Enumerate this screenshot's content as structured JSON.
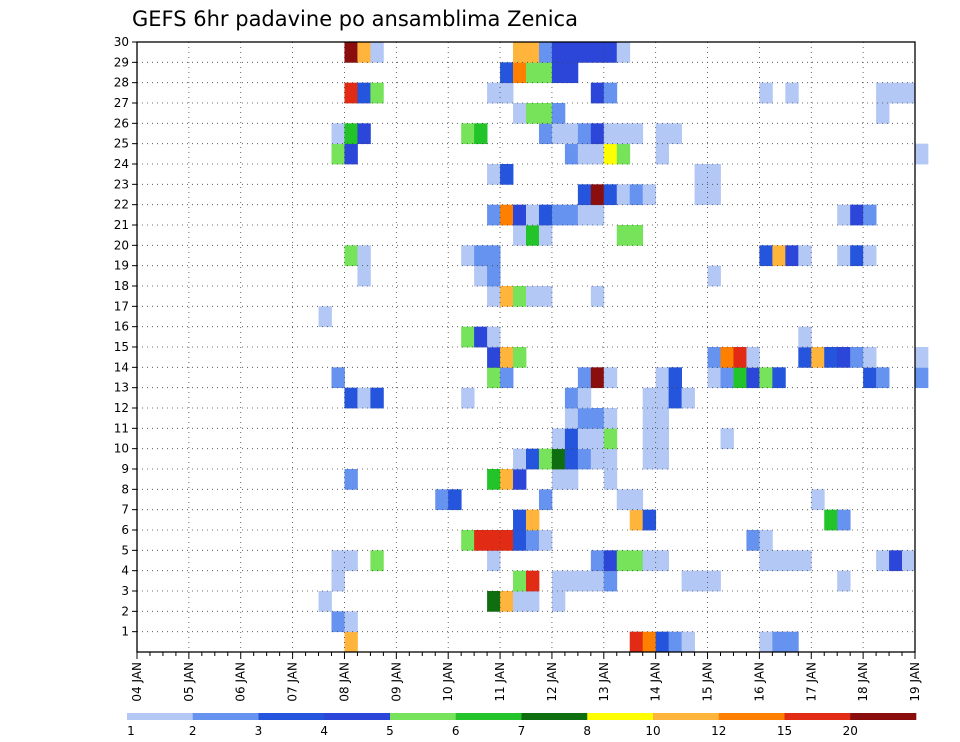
{
  "chart_data": {
    "type": "heatmap",
    "title": "GEFS 6hr padavine po ansamblima Zenica",
    "x_ticks": [
      "04 JAN",
      "05 JAN",
      "06 JAN",
      "07 JAN",
      "08 JAN",
      "09 JAN",
      "10 JAN",
      "11 JAN",
      "12 JAN",
      "13 JAN",
      "14 JAN",
      "15 JAN",
      "16 JAN",
      "17 JAN",
      "18 JAN",
      "19 JAN"
    ],
    "y_ticks": [
      "1",
      "2",
      "3",
      "4",
      "5",
      "6",
      "7",
      "8",
      "9",
      "10",
      "11",
      "12",
      "13",
      "14",
      "15",
      "16",
      "17",
      "18",
      "19",
      "20",
      "21",
      "22",
      "23",
      "24",
      "25",
      "26",
      "27",
      "28",
      "29",
      "30"
    ],
    "x_range": [
      "04 JAN",
      "19 JAN"
    ],
    "y_range": [
      0,
      30
    ],
    "steps_per_day": 4,
    "grid": "dotted",
    "colorbar": {
      "placement": "bottom",
      "labels": [
        "1",
        "2",
        "3",
        "4",
        "5",
        "6",
        "7",
        "8",
        "10",
        "12",
        "15",
        "20"
      ],
      "colors": [
        "#b4c8f5",
        "#6693f0",
        "#2455dc",
        "#2b46d8",
        "#76e35a",
        "#22c42a",
        "#0f6e10",
        "#ffff00",
        "#ffb43c",
        "#ff8000",
        "#e22b14",
        "#8b0e0e"
      ]
    },
    "cells": [
      {
        "t": 16,
        "m": 1,
        "v": 9
      },
      {
        "t": 38,
        "m": 1,
        "v": 11
      },
      {
        "t": 39,
        "m": 1,
        "v": 10
      },
      {
        "t": 40,
        "m": 1,
        "v": 3
      },
      {
        "t": 41,
        "m": 1,
        "v": 2
      },
      {
        "t": 42,
        "m": 1,
        "v": 1
      },
      {
        "t": 48,
        "m": 1,
        "v": 1
      },
      {
        "t": 49,
        "m": 1,
        "v": 2
      },
      {
        "t": 50,
        "m": 1,
        "v": 2
      },
      {
        "t": 15,
        "m": 2,
        "v": 2
      },
      {
        "t": 16,
        "m": 2,
        "v": 1
      },
      {
        "t": 14,
        "m": 3,
        "v": 1
      },
      {
        "t": 27,
        "m": 3,
        "v": 7
      },
      {
        "t": 28,
        "m": 3,
        "v": 9
      },
      {
        "t": 29,
        "m": 3,
        "v": 1
      },
      {
        "t": 30,
        "m": 3,
        "v": 1
      },
      {
        "t": 32,
        "m": 3,
        "v": 1
      },
      {
        "t": 15,
        "m": 4,
        "v": 1
      },
      {
        "t": 29,
        "m": 4,
        "v": 5
      },
      {
        "t": 30,
        "m": 4,
        "v": 11
      },
      {
        "t": 32,
        "m": 4,
        "v": 1
      },
      {
        "t": 33,
        "m": 4,
        "v": 1
      },
      {
        "t": 34,
        "m": 4,
        "v": 1
      },
      {
        "t": 35,
        "m": 4,
        "v": 1
      },
      {
        "t": 36,
        "m": 4,
        "v": 2
      },
      {
        "t": 42,
        "m": 4,
        "v": 1
      },
      {
        "t": 43,
        "m": 4,
        "v": 1
      },
      {
        "t": 44,
        "m": 4,
        "v": 1
      },
      {
        "t": 54,
        "m": 4,
        "v": 1
      },
      {
        "t": 15,
        "m": 5,
        "v": 1
      },
      {
        "t": 16,
        "m": 5,
        "v": 1
      },
      {
        "t": 18,
        "m": 5,
        "v": 5
      },
      {
        "t": 27,
        "m": 5,
        "v": 1
      },
      {
        "t": 35,
        "m": 5,
        "v": 2
      },
      {
        "t": 36,
        "m": 5,
        "v": 4
      },
      {
        "t": 37,
        "m": 5,
        "v": 5
      },
      {
        "t": 38,
        "m": 5,
        "v": 5
      },
      {
        "t": 39,
        "m": 5,
        "v": 1
      },
      {
        "t": 40,
        "m": 5,
        "v": 1
      },
      {
        "t": 48,
        "m": 5,
        "v": 1
      },
      {
        "t": 49,
        "m": 5,
        "v": 1
      },
      {
        "t": 50,
        "m": 5,
        "v": 1
      },
      {
        "t": 51,
        "m": 5,
        "v": 1
      },
      {
        "t": 57,
        "m": 5,
        "v": 1
      },
      {
        "t": 58,
        "m": 5,
        "v": 4
      },
      {
        "t": 59,
        "m": 5,
        "v": 1
      },
      {
        "t": 25,
        "m": 6,
        "v": 5
      },
      {
        "t": 26,
        "m": 6,
        "v": 11
      },
      {
        "t": 27,
        "m": 6,
        "v": 11
      },
      {
        "t": 28,
        "m": 6,
        "v": 11
      },
      {
        "t": 29,
        "m": 6,
        "v": 3
      },
      {
        "t": 30,
        "m": 6,
        "v": 2
      },
      {
        "t": 31,
        "m": 6,
        "v": 1
      },
      {
        "t": 47,
        "m": 6,
        "v": 2
      },
      {
        "t": 48,
        "m": 6,
        "v": 1
      },
      {
        "t": 29,
        "m": 7,
        "v": 3
      },
      {
        "t": 30,
        "m": 7,
        "v": 9
      },
      {
        "t": 38,
        "m": 7,
        "v": 9
      },
      {
        "t": 39,
        "m": 7,
        "v": 3
      },
      {
        "t": 53,
        "m": 7,
        "v": 6
      },
      {
        "t": 54,
        "m": 7,
        "v": 2
      },
      {
        "t": 23,
        "m": 8,
        "v": 2
      },
      {
        "t": 24,
        "m": 8,
        "v": 3
      },
      {
        "t": 31,
        "m": 8,
        "v": 2
      },
      {
        "t": 37,
        "m": 8,
        "v": 1
      },
      {
        "t": 38,
        "m": 8,
        "v": 1
      },
      {
        "t": 52,
        "m": 8,
        "v": 1
      },
      {
        "t": 16,
        "m": 9,
        "v": 2
      },
      {
        "t": 27,
        "m": 9,
        "v": 6
      },
      {
        "t": 28,
        "m": 9,
        "v": 9
      },
      {
        "t": 29,
        "m": 9,
        "v": 4
      },
      {
        "t": 32,
        "m": 9,
        "v": 1
      },
      {
        "t": 33,
        "m": 9,
        "v": 1
      },
      {
        "t": 36,
        "m": 9,
        "v": 1
      },
      {
        "t": 29,
        "m": 10,
        "v": 1
      },
      {
        "t": 30,
        "m": 10,
        "v": 3
      },
      {
        "t": 31,
        "m": 10,
        "v": 5
      },
      {
        "t": 32,
        "m": 10,
        "v": 7
      },
      {
        "t": 33,
        "m": 10,
        "v": 3
      },
      {
        "t": 34,
        "m": 10,
        "v": 2
      },
      {
        "t": 35,
        "m": 10,
        "v": 1
      },
      {
        "t": 36,
        "m": 10,
        "v": 1
      },
      {
        "t": 39,
        "m": 10,
        "v": 1
      },
      {
        "t": 40,
        "m": 10,
        "v": 1
      },
      {
        "t": 32,
        "m": 11,
        "v": 1
      },
      {
        "t": 33,
        "m": 11,
        "v": 3
      },
      {
        "t": 34,
        "m": 11,
        "v": 1
      },
      {
        "t": 35,
        "m": 11,
        "v": 1
      },
      {
        "t": 36,
        "m": 11,
        "v": 5
      },
      {
        "t": 39,
        "m": 11,
        "v": 1
      },
      {
        "t": 40,
        "m": 11,
        "v": 1
      },
      {
        "t": 45,
        "m": 11,
        "v": 1
      },
      {
        "t": 33,
        "m": 12,
        "v": 1
      },
      {
        "t": 34,
        "m": 12,
        "v": 2
      },
      {
        "t": 35,
        "m": 12,
        "v": 2
      },
      {
        "t": 36,
        "m": 12,
        "v": 1
      },
      {
        "t": 39,
        "m": 12,
        "v": 1
      },
      {
        "t": 40,
        "m": 12,
        "v": 1
      },
      {
        "t": 16,
        "m": 13,
        "v": 3
      },
      {
        "t": 17,
        "m": 13,
        "v": 1
      },
      {
        "t": 18,
        "m": 13,
        "v": 3
      },
      {
        "t": 25,
        "m": 13,
        "v": 1
      },
      {
        "t": 33,
        "m": 13,
        "v": 2
      },
      {
        "t": 34,
        "m": 13,
        "v": 1
      },
      {
        "t": 39,
        "m": 13,
        "v": 1
      },
      {
        "t": 40,
        "m": 13,
        "v": 1
      },
      {
        "t": 41,
        "m": 13,
        "v": 3
      },
      {
        "t": 42,
        "m": 13,
        "v": 1
      },
      {
        "t": 15,
        "m": 14,
        "v": 2
      },
      {
        "t": 27,
        "m": 14,
        "v": 5
      },
      {
        "t": 28,
        "m": 14,
        "v": 2
      },
      {
        "t": 34,
        "m": 14,
        "v": 2
      },
      {
        "t": 35,
        "m": 14,
        "v": 12
      },
      {
        "t": 36,
        "m": 14,
        "v": 1
      },
      {
        "t": 40,
        "m": 14,
        "v": 1
      },
      {
        "t": 41,
        "m": 14,
        "v": 3
      },
      {
        "t": 44,
        "m": 14,
        "v": 1
      },
      {
        "t": 45,
        "m": 14,
        "v": 2
      },
      {
        "t": 46,
        "m": 14,
        "v": 6
      },
      {
        "t": 47,
        "m": 14,
        "v": 4
      },
      {
        "t": 48,
        "m": 14,
        "v": 5
      },
      {
        "t": 49,
        "m": 14,
        "v": 3
      },
      {
        "t": 56,
        "m": 14,
        "v": 3
      },
      {
        "t": 57,
        "m": 14,
        "v": 2
      },
      {
        "t": 60,
        "m": 14,
        "v": 2
      },
      {
        "t": 27,
        "m": 15,
        "v": 4
      },
      {
        "t": 28,
        "m": 15,
        "v": 9
      },
      {
        "t": 29,
        "m": 15,
        "v": 5
      },
      {
        "t": 44,
        "m": 15,
        "v": 2
      },
      {
        "t": 45,
        "m": 15,
        "v": 10
      },
      {
        "t": 46,
        "m": 15,
        "v": 11
      },
      {
        "t": 47,
        "m": 15,
        "v": 1
      },
      {
        "t": 51,
        "m": 15,
        "v": 3
      },
      {
        "t": 52,
        "m": 15,
        "v": 9
      },
      {
        "t": 53,
        "m": 15,
        "v": 3
      },
      {
        "t": 54,
        "m": 15,
        "v": 4
      },
      {
        "t": 55,
        "m": 15,
        "v": 2
      },
      {
        "t": 56,
        "m": 15,
        "v": 1
      },
      {
        "t": 60,
        "m": 15,
        "v": 1
      },
      {
        "t": 25,
        "m": 16,
        "v": 5
      },
      {
        "t": 26,
        "m": 16,
        "v": 4
      },
      {
        "t": 27,
        "m": 16,
        "v": 1
      },
      {
        "t": 51,
        "m": 16,
        "v": 1
      },
      {
        "t": 14,
        "m": 17,
        "v": 1
      },
      {
        "t": 27,
        "m": 18,
        "v": 1
      },
      {
        "t": 28,
        "m": 18,
        "v": 9
      },
      {
        "t": 29,
        "m": 18,
        "v": 5
      },
      {
        "t": 30,
        "m": 18,
        "v": 1
      },
      {
        "t": 31,
        "m": 18,
        "v": 1
      },
      {
        "t": 35,
        "m": 18,
        "v": 1
      },
      {
        "t": 17,
        "m": 19,
        "v": 1
      },
      {
        "t": 26,
        "m": 19,
        "v": 1
      },
      {
        "t": 27,
        "m": 19,
        "v": 2
      },
      {
        "t": 44,
        "m": 19,
        "v": 1
      },
      {
        "t": 16,
        "m": 20,
        "v": 5
      },
      {
        "t": 17,
        "m": 20,
        "v": 1
      },
      {
        "t": 25,
        "m": 20,
        "v": 1
      },
      {
        "t": 26,
        "m": 20,
        "v": 2
      },
      {
        "t": 27,
        "m": 20,
        "v": 2
      },
      {
        "t": 48,
        "m": 20,
        "v": 3
      },
      {
        "t": 49,
        "m": 20,
        "v": 9
      },
      {
        "t": 50,
        "m": 20,
        "v": 4
      },
      {
        "t": 51,
        "m": 20,
        "v": 1
      },
      {
        "t": 54,
        "m": 20,
        "v": 1
      },
      {
        "t": 55,
        "m": 20,
        "v": 3
      },
      {
        "t": 56,
        "m": 20,
        "v": 1
      },
      {
        "t": 29,
        "m": 21,
        "v": 1
      },
      {
        "t": 30,
        "m": 21,
        "v": 6
      },
      {
        "t": 31,
        "m": 21,
        "v": 1
      },
      {
        "t": 37,
        "m": 21,
        "v": 5
      },
      {
        "t": 38,
        "m": 21,
        "v": 5
      },
      {
        "t": 27,
        "m": 22,
        "v": 2
      },
      {
        "t": 28,
        "m": 22,
        "v": 10
      },
      {
        "t": 29,
        "m": 22,
        "v": 4
      },
      {
        "t": 30,
        "m": 22,
        "v": 1
      },
      {
        "t": 31,
        "m": 22,
        "v": 3
      },
      {
        "t": 32,
        "m": 22,
        "v": 2
      },
      {
        "t": 33,
        "m": 22,
        "v": 2
      },
      {
        "t": 34,
        "m": 22,
        "v": 1
      },
      {
        "t": 35,
        "m": 22,
        "v": 1
      },
      {
        "t": 54,
        "m": 22,
        "v": 1
      },
      {
        "t": 55,
        "m": 22,
        "v": 4
      },
      {
        "t": 56,
        "m": 22,
        "v": 2
      },
      {
        "t": 34,
        "m": 23,
        "v": 3
      },
      {
        "t": 35,
        "m": 23,
        "v": 12
      },
      {
        "t": 36,
        "m": 23,
        "v": 3
      },
      {
        "t": 37,
        "m": 23,
        "v": 1
      },
      {
        "t": 38,
        "m": 23,
        "v": 2
      },
      {
        "t": 39,
        "m": 23,
        "v": 1
      },
      {
        "t": 43,
        "m": 23,
        "v": 1
      },
      {
        "t": 44,
        "m": 23,
        "v": 1
      },
      {
        "t": 27,
        "m": 24,
        "v": 1
      },
      {
        "t": 28,
        "m": 24,
        "v": 3
      },
      {
        "t": 43,
        "m": 24,
        "v": 1
      },
      {
        "t": 44,
        "m": 24,
        "v": 1
      },
      {
        "t": 15,
        "m": 25,
        "v": 5
      },
      {
        "t": 16,
        "m": 25,
        "v": 4
      },
      {
        "t": 33,
        "m": 25,
        "v": 2
      },
      {
        "t": 34,
        "m": 25,
        "v": 1
      },
      {
        "t": 35,
        "m": 25,
        "v": 1
      },
      {
        "t": 36,
        "m": 25,
        "v": 8
      },
      {
        "t": 37,
        "m": 25,
        "v": 5
      },
      {
        "t": 40,
        "m": 25,
        "v": 1
      },
      {
        "t": 60,
        "m": 25,
        "v": 1
      },
      {
        "t": 15,
        "m": 26,
        "v": 1
      },
      {
        "t": 16,
        "m": 26,
        "v": 6
      },
      {
        "t": 17,
        "m": 26,
        "v": 4
      },
      {
        "t": 25,
        "m": 26,
        "v": 5
      },
      {
        "t": 26,
        "m": 26,
        "v": 6
      },
      {
        "t": 31,
        "m": 26,
        "v": 2
      },
      {
        "t": 32,
        "m": 26,
        "v": 1
      },
      {
        "t": 33,
        "m": 26,
        "v": 1
      },
      {
        "t": 34,
        "m": 26,
        "v": 2
      },
      {
        "t": 35,
        "m": 26,
        "v": 4
      },
      {
        "t": 36,
        "m": 26,
        "v": 1
      },
      {
        "t": 37,
        "m": 26,
        "v": 1
      },
      {
        "t": 38,
        "m": 26,
        "v": 1
      },
      {
        "t": 40,
        "m": 26,
        "v": 1
      },
      {
        "t": 41,
        "m": 26,
        "v": 1
      },
      {
        "t": 29,
        "m": 27,
        "v": 1
      },
      {
        "t": 30,
        "m": 27,
        "v": 5
      },
      {
        "t": 31,
        "m": 27,
        "v": 5
      },
      {
        "t": 32,
        "m": 27,
        "v": 2
      },
      {
        "t": 57,
        "m": 27,
        "v": 1
      },
      {
        "t": 16,
        "m": 28,
        "v": 11
      },
      {
        "t": 17,
        "m": 28,
        "v": 3
      },
      {
        "t": 18,
        "m": 28,
        "v": 5
      },
      {
        "t": 27,
        "m": 28,
        "v": 1
      },
      {
        "t": 28,
        "m": 28,
        "v": 1
      },
      {
        "t": 35,
        "m": 28,
        "v": 4
      },
      {
        "t": 36,
        "m": 28,
        "v": 2
      },
      {
        "t": 48,
        "m": 28,
        "v": 1
      },
      {
        "t": 50,
        "m": 28,
        "v": 1
      },
      {
        "t": 57,
        "m": 28,
        "v": 1
      },
      {
        "t": 58,
        "m": 28,
        "v": 1
      },
      {
        "t": 59,
        "m": 28,
        "v": 1
      },
      {
        "t": 28,
        "m": 29,
        "v": 3
      },
      {
        "t": 29,
        "m": 29,
        "v": 10
      },
      {
        "t": 30,
        "m": 29,
        "v": 5
      },
      {
        "t": 31,
        "m": 29,
        "v": 5
      },
      {
        "t": 32,
        "m": 29,
        "v": 4
      },
      {
        "t": 33,
        "m": 29,
        "v": 4
      },
      {
        "t": 16,
        "m": 30,
        "v": 12
      },
      {
        "t": 17,
        "m": 30,
        "v": 9
      },
      {
        "t": 18,
        "m": 30,
        "v": 1
      },
      {
        "t": 29,
        "m": 30,
        "v": 9
      },
      {
        "t": 30,
        "m": 30,
        "v": 9
      },
      {
        "t": 31,
        "m": 30,
        "v": 2
      },
      {
        "t": 32,
        "m": 30,
        "v": 4
      },
      {
        "t": 33,
        "m": 30,
        "v": 4
      },
      {
        "t": 34,
        "m": 30,
        "v": 4
      },
      {
        "t": 35,
        "m": 30,
        "v": 4
      },
      {
        "t": 36,
        "m": 30,
        "v": 4
      },
      {
        "t": 37,
        "m": 30,
        "v": 1
      }
    ]
  }
}
